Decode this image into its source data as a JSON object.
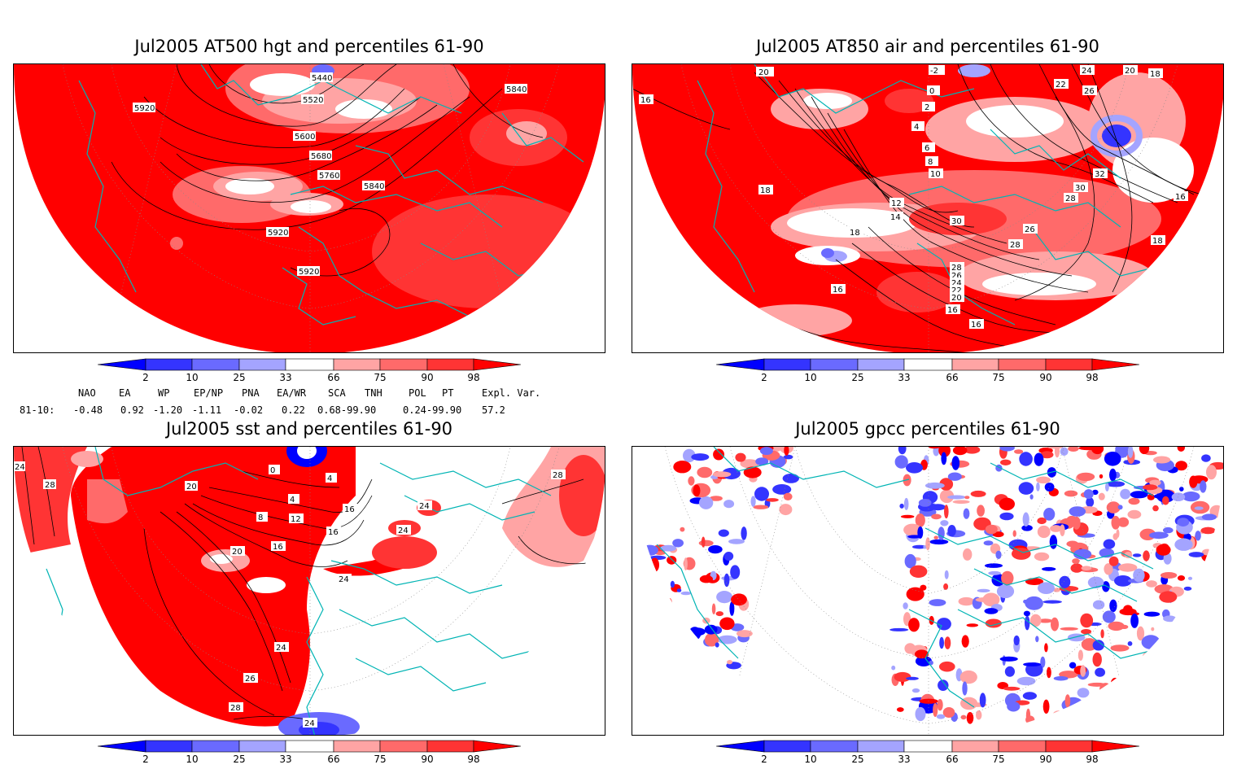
{
  "panels": [
    {
      "title": "Jul2005 AT500 hgt and percentiles 61-90",
      "contour_labels": [
        "5440",
        "5520",
        "5600",
        "5680",
        "5760",
        "5840",
        "5840",
        "5920",
        "5920",
        "5920"
      ]
    },
    {
      "title": "Jul2005 AT850 air and percentiles 61-90",
      "contour_labels": [
        "20",
        "-2",
        "24",
        "22",
        "26",
        "20",
        "18",
        "16",
        "16",
        "18",
        "18",
        "18",
        "12",
        "14",
        "16",
        "16",
        "16",
        "10",
        "8",
        "6",
        "4",
        "2",
        "0",
        "30",
        "28",
        "26",
        "24",
        "22",
        "20",
        "32",
        "30",
        "28",
        "26",
        "28"
      ]
    },
    {
      "title": "Jul2005 sst and percentiles 61-90",
      "contour_labels": [
        "24",
        "28",
        "20",
        "0",
        "4",
        "4",
        "8",
        "12",
        "16",
        "16",
        "20",
        "24",
        "24",
        "26",
        "28",
        "24",
        "28",
        "16",
        "24",
        "24"
      ]
    },
    {
      "title": "Jul2005 gpcc percentiles 61-90",
      "contour_labels": []
    }
  ],
  "colorbar": {
    "ticks": [
      "2",
      "10",
      "25",
      "33",
      "66",
      "75",
      "90",
      "98"
    ],
    "colors": [
      "#0000ff",
      "#3434ff",
      "#6a6aff",
      "#a4a4ff",
      "#ffffff",
      "#ffa4a4",
      "#ff6a6a",
      "#ff3434",
      "#ff0000"
    ]
  },
  "indices": {
    "headers": [
      "NAO",
      "EA",
      "WP",
      "EP/NP",
      "PNA",
      "EA/WR",
      "SCA",
      "TNH",
      "POL",
      "PT",
      "Expl. Var."
    ],
    "row_label": "81-10:",
    "values": [
      "-0.48",
      "0.92",
      "-1.20",
      "-1.11",
      "-0.02",
      "0.22",
      "0.68-99.90",
      "",
      "0.24-99.90",
      "",
      "57.2"
    ]
  }
}
